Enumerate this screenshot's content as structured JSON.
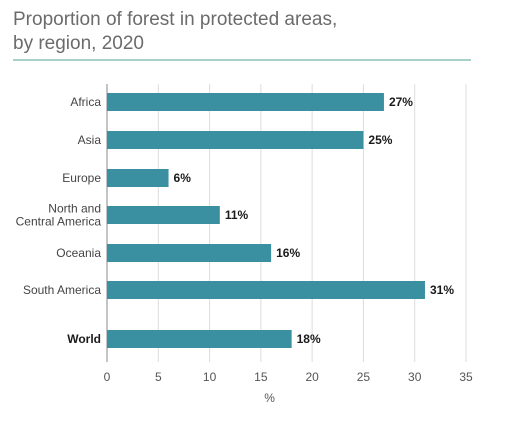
{
  "title_lines": [
    "Proportion of forest in protected areas,",
    "by region, 2020"
  ],
  "chart_data": {
    "type": "bar",
    "orientation": "horizontal",
    "title": "Proportion of forest in protected areas, by region, 2020",
    "categories": [
      "Africa",
      "Asia",
      "Europe",
      "North and Central America",
      "Oceania",
      "South America",
      "World"
    ],
    "category_lines": [
      [
        "Africa"
      ],
      [
        "Asia"
      ],
      [
        "Europe"
      ],
      [
        "North and",
        "Central America"
      ],
      [
        "Oceania"
      ],
      [
        "South America"
      ],
      [
        "World"
      ]
    ],
    "values": [
      27,
      25,
      6,
      11,
      16,
      31,
      18
    ],
    "value_labels": [
      "27%",
      "25%",
      "6%",
      "11%",
      "16%",
      "31%",
      "18%"
    ],
    "xlabel": "%",
    "ylabel": "",
    "xlim": [
      0,
      35
    ],
    "xticks": [
      0,
      5,
      10,
      15,
      20,
      25,
      30,
      35
    ],
    "grid": true,
    "bar_color": "#3a8fa0",
    "grid_color": "#dddddd"
  }
}
